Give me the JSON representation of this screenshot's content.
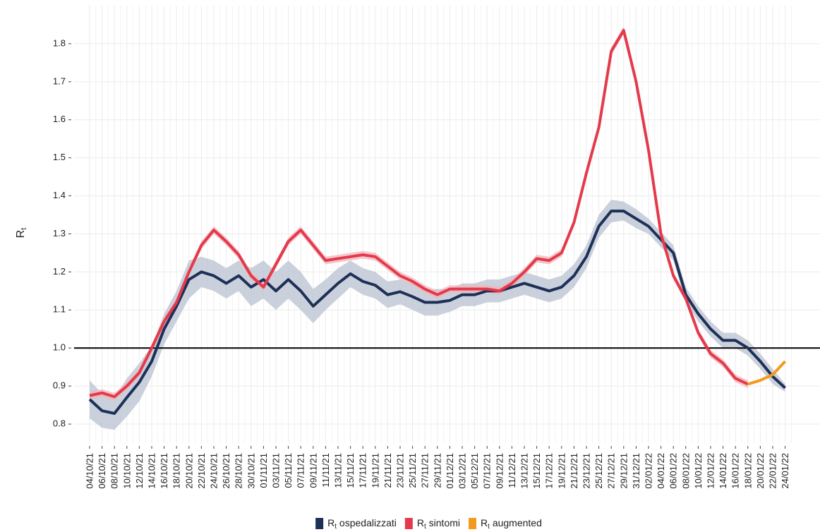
{
  "chart_data": {
    "type": "line",
    "ylabel": "R",
    "ylabel_sub": "t",
    "symbol": "R",
    "symbol_sub": "t",
    "categories": [
      "04/10/21",
      "06/10/21",
      "08/10/21",
      "10/10/21",
      "12/10/21",
      "14/10/21",
      "16/10/21",
      "18/10/21",
      "20/10/21",
      "22/10/21",
      "24/10/21",
      "26/10/21",
      "28/10/21",
      "30/10/21",
      "01/11/21",
      "03/11/21",
      "05/11/21",
      "07/11/21",
      "09/11/21",
      "11/11/21",
      "13/11/21",
      "15/11/21",
      "17/11/21",
      "19/11/21",
      "21/11/21",
      "23/11/21",
      "25/11/21",
      "27/11/21",
      "29/11/21",
      "01/12/21",
      "03/12/21",
      "05/12/21",
      "07/12/21",
      "09/12/21",
      "11/12/21",
      "13/12/21",
      "15/12/21",
      "17/12/21",
      "19/12/21",
      "21/12/21",
      "23/12/21",
      "25/12/21",
      "27/12/21",
      "29/12/21",
      "31/12/21",
      "02/01/22",
      "04/01/22",
      "06/01/22",
      "08/01/22",
      "10/01/22",
      "12/01/22",
      "14/01/22",
      "16/01/22",
      "18/01/22",
      "20/01/22",
      "22/01/22",
      "24/01/22"
    ],
    "series": [
      {
        "name": "ospedalizzati",
        "color": "#1d3058",
        "band_color": "#b9c2d0",
        "values": [
          0.865,
          0.835,
          0.828,
          0.87,
          0.91,
          0.965,
          1.05,
          1.11,
          1.18,
          1.2,
          1.19,
          1.17,
          1.19,
          1.16,
          1.18,
          1.15,
          1.18,
          1.15,
          1.11,
          1.14,
          1.17,
          1.195,
          1.175,
          1.165,
          1.14,
          1.148,
          1.135,
          1.12,
          1.12,
          1.125,
          1.14,
          1.14,
          1.15,
          1.15,
          1.16,
          1.17,
          1.16,
          1.15,
          1.16,
          1.19,
          1.24,
          1.32,
          1.36,
          1.36,
          1.34,
          1.32,
          1.285,
          1.25,
          1.14,
          1.09,
          1.05,
          1.02,
          1.02,
          1.0,
          0.965,
          0.925,
          0.895
        ],
        "lower": [
          0.815,
          0.79,
          0.785,
          0.82,
          0.86,
          0.925,
          1.01,
          1.07,
          1.13,
          1.16,
          1.15,
          1.13,
          1.15,
          1.11,
          1.13,
          1.1,
          1.13,
          1.1,
          1.065,
          1.1,
          1.13,
          1.16,
          1.14,
          1.13,
          1.105,
          1.115,
          1.1,
          1.085,
          1.085,
          1.095,
          1.11,
          1.11,
          1.12,
          1.12,
          1.13,
          1.14,
          1.13,
          1.12,
          1.13,
          1.16,
          1.21,
          1.29,
          1.33,
          1.335,
          1.315,
          1.3,
          1.265,
          1.23,
          1.12,
          1.07,
          1.03,
          1.0,
          1.0,
          0.98,
          0.945,
          0.905,
          0.885
        ],
        "upper": [
          0.915,
          0.88,
          0.87,
          0.92,
          0.96,
          1.005,
          1.09,
          1.15,
          1.23,
          1.24,
          1.23,
          1.21,
          1.23,
          1.21,
          1.23,
          1.2,
          1.23,
          1.2,
          1.155,
          1.18,
          1.21,
          1.23,
          1.21,
          1.2,
          1.175,
          1.18,
          1.17,
          1.155,
          1.155,
          1.155,
          1.17,
          1.17,
          1.18,
          1.18,
          1.19,
          1.2,
          1.19,
          1.18,
          1.19,
          1.22,
          1.27,
          1.35,
          1.39,
          1.385,
          1.365,
          1.34,
          1.305,
          1.27,
          1.16,
          1.11,
          1.07,
          1.04,
          1.04,
          1.02,
          0.985,
          0.945,
          0.905
        ]
      },
      {
        "name": "sintomi",
        "color": "#e43a4b",
        "band_color": "#f2b3b9",
        "values": [
          0.875,
          0.882,
          0.872,
          0.9,
          0.935,
          1.0,
          1.07,
          1.12,
          1.2,
          1.27,
          1.31,
          1.28,
          1.245,
          1.19,
          1.16,
          1.22,
          1.28,
          1.31,
          1.27,
          1.23,
          1.235,
          1.24,
          1.245,
          1.24,
          1.215,
          1.19,
          1.175,
          1.155,
          1.14,
          1.155,
          1.155,
          1.155,
          1.155,
          1.15,
          1.17,
          1.2,
          1.235,
          1.23,
          1.25,
          1.33,
          1.46,
          1.58,
          1.78,
          1.835,
          1.7,
          1.52,
          1.3,
          1.19,
          1.13,
          1.04,
          0.985,
          0.96,
          0.92,
          0.905,
          null,
          null,
          null
        ],
        "lower": [
          0.865,
          0.872,
          0.862,
          0.89,
          0.925,
          0.99,
          1.06,
          1.11,
          1.19,
          1.26,
          1.3,
          1.27,
          1.235,
          1.18,
          1.15,
          1.21,
          1.27,
          1.3,
          1.26,
          1.22,
          1.225,
          1.23,
          1.235,
          1.23,
          1.205,
          1.18,
          1.165,
          1.145,
          1.13,
          1.145,
          1.145,
          1.145,
          1.145,
          1.14,
          1.16,
          1.19,
          1.225,
          1.22,
          1.24,
          1.32,
          1.45,
          1.57,
          1.77,
          1.825,
          1.69,
          1.51,
          1.29,
          1.18,
          1.12,
          1.03,
          0.975,
          0.95,
          0.91,
          0.895,
          null,
          null,
          null
        ],
        "upper": [
          0.885,
          0.892,
          0.882,
          0.91,
          0.945,
          1.01,
          1.08,
          1.13,
          1.21,
          1.28,
          1.32,
          1.29,
          1.255,
          1.2,
          1.17,
          1.23,
          1.29,
          1.32,
          1.28,
          1.24,
          1.245,
          1.25,
          1.255,
          1.25,
          1.225,
          1.2,
          1.185,
          1.165,
          1.15,
          1.165,
          1.165,
          1.165,
          1.165,
          1.16,
          1.18,
          1.21,
          1.245,
          1.24,
          1.26,
          1.34,
          1.47,
          1.59,
          1.79,
          1.845,
          1.71,
          1.53,
          1.31,
          1.2,
          1.14,
          1.05,
          0.995,
          0.97,
          0.93,
          0.915,
          null,
          null,
          null
        ]
      },
      {
        "name": "augmented",
        "color": "#f39a1e",
        "values": [
          null,
          null,
          null,
          null,
          null,
          null,
          null,
          null,
          null,
          null,
          null,
          null,
          null,
          null,
          null,
          null,
          null,
          null,
          null,
          null,
          null,
          null,
          null,
          null,
          null,
          null,
          null,
          null,
          null,
          null,
          null,
          null,
          null,
          null,
          null,
          null,
          null,
          null,
          null,
          null,
          null,
          null,
          null,
          null,
          null,
          null,
          null,
          null,
          null,
          null,
          null,
          null,
          null,
          0.905,
          0.915,
          0.93,
          0.965
        ]
      }
    ],
    "ylim": [
      0.75,
      1.9
    ],
    "yticks": [
      0.8,
      0.9,
      {
        "value": 1,
        "label": "1.0"
      },
      1.1,
      1.2,
      1.3,
      1.4,
      1.5,
      1.6,
      1.7,
      1.8
    ],
    "hline": 1,
    "grid": true
  }
}
